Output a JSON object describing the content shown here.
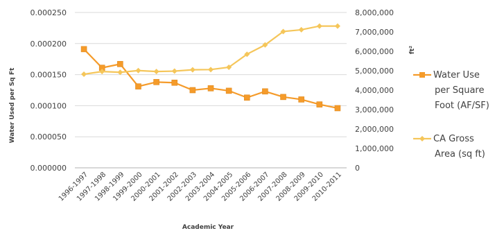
{
  "chart_data": {
    "type": "line",
    "xlabel": "Academic Year",
    "ylabel_left": "Water Used per Sq Ft",
    "ylabel_right": "ft²",
    "categories": [
      "1996-1997",
      "1997-1998",
      "1998-1999",
      "1999-2000",
      "2000-2001",
      "2001-2002",
      "2002-2003",
      "2003-2004",
      "2004-2005",
      "2005-2006",
      "2006-2007",
      "2007-2008",
      "2008-2009",
      "2009-2010",
      "2010-2011"
    ],
    "ylim_left": [
      0,
      0.00025
    ],
    "ylim_right": [
      0,
      8000000
    ],
    "yticks_left": [
      "0.000250",
      "0.000200",
      "0.000150",
      "0.000100",
      "0.000050",
      "0.000000"
    ],
    "yticks_right": [
      "8,000,000",
      "7,000,000",
      "6,000,000",
      "5,000,000",
      "4,000,000",
      "3,000,000",
      "2,000,000",
      "1,000,000",
      "0"
    ],
    "grid": true,
    "legend_position": "right",
    "series": [
      {
        "name": "Water Use per Square Foot (AF/SF)",
        "name_lines": [
          "Water Use",
          "per Square",
          "Foot (AF/SF)"
        ],
        "axis": "left",
        "marker": "square",
        "color": "#F59B2A",
        "values": [
          0.000191,
          0.000161,
          0.000167,
          0.000131,
          0.000138,
          0.000137,
          0.000125,
          0.000128,
          0.000124,
          0.000113,
          0.000123,
          0.000114,
          0.00011,
          0.000102,
          9.6e-05
        ]
      },
      {
        "name": "CA Gross Area (sq ft)",
        "name_lines": [
          "CA Gross",
          "Area (sq ft)"
        ],
        "axis": "right",
        "marker": "diamond",
        "color": "#F5C65A",
        "values": [
          4820000,
          4960000,
          4920000,
          5010000,
          4960000,
          4980000,
          5050000,
          5060000,
          5180000,
          5850000,
          6330000,
          7020000,
          7110000,
          7300000,
          7300000
        ]
      }
    ]
  }
}
